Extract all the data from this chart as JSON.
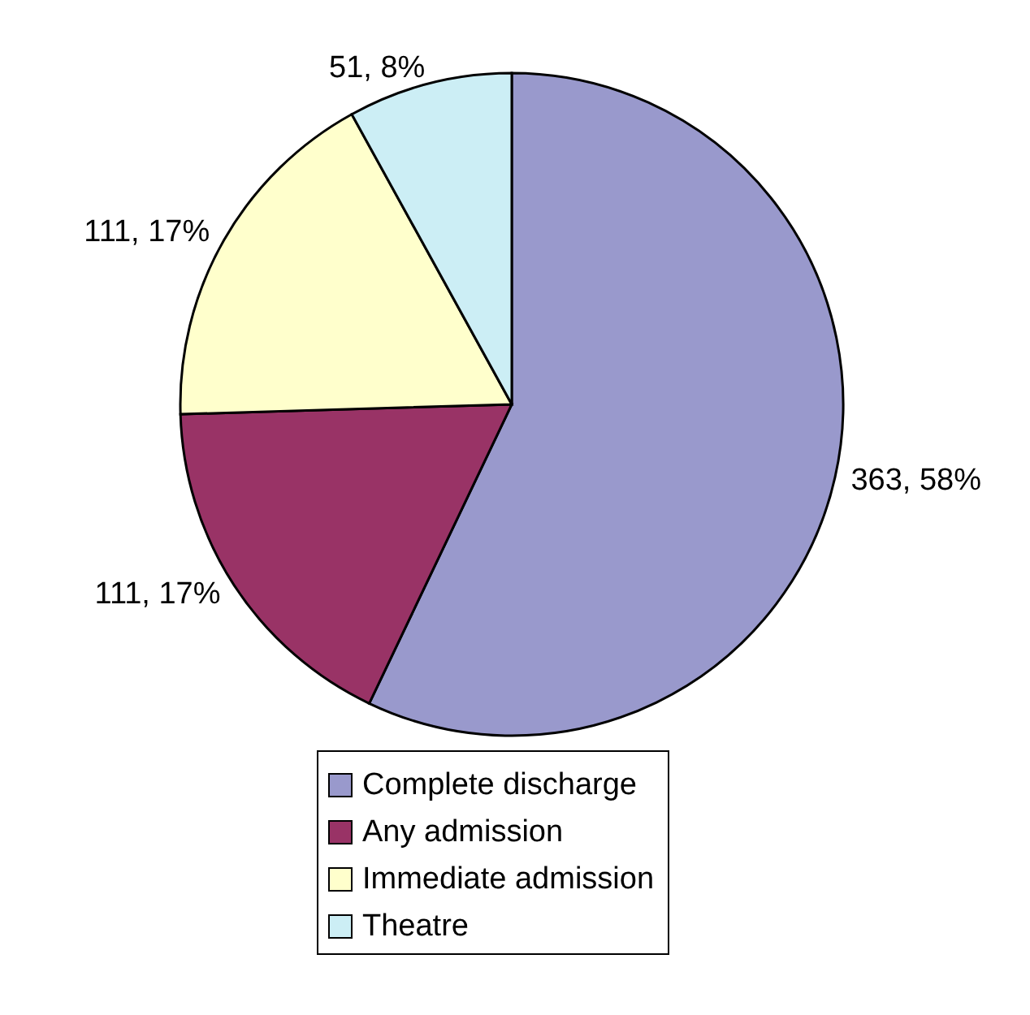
{
  "chart_data": {
    "type": "pie",
    "categories": [
      "Complete discharge",
      "Any admission",
      "Immediate admission",
      "Theatre"
    ],
    "values": [
      363,
      111,
      111,
      51
    ],
    "colors": [
      "#9999cc",
      "#993366",
      "#ffffcc",
      "#cceef5"
    ],
    "value_labels": [
      "363, 58%",
      "111, 17%",
      "111, 17%",
      "51, 8%"
    ],
    "legend": "bottom"
  }
}
